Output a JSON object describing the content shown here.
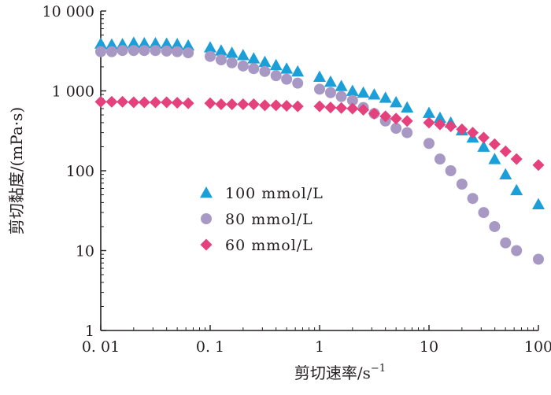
{
  "chart_data": {
    "type": "scatter",
    "xscale": "log",
    "yscale": "log",
    "xlim": [
      0.01,
      100
    ],
    "ylim": [
      1,
      10000
    ],
    "grid": false,
    "legend_position": "center-left",
    "xlabel": "剪切速率/s",
    "xlabel_sup": "−1",
    "ylabel": "剪切黏度/(mPa·s)",
    "x_ticks": [
      0.01,
      0.1,
      1,
      10,
      100
    ],
    "x_tick_labels": [
      "0. 01",
      "0. 1",
      "1",
      "10",
      "100"
    ],
    "y_ticks": [
      1,
      10,
      100,
      1000,
      10000
    ],
    "y_tick_labels": [
      "1",
      "10",
      "100",
      "1 000",
      "10 000"
    ],
    "series": [
      {
        "name": "100 mmol/L",
        "marker": "triangle",
        "color": "#1a9fd8",
        "x": [
          0.01,
          0.0126,
          0.0158,
          0.02,
          0.025,
          0.0316,
          0.04,
          0.05,
          0.063,
          0.1,
          0.126,
          0.158,
          0.2,
          0.25,
          0.316,
          0.4,
          0.5,
          0.631,
          1,
          1.26,
          1.58,
          2,
          2.51,
          3.16,
          4,
          5,
          6.31,
          10,
          12.6,
          15.8,
          20,
          25.1,
          31.6,
          39.8,
          50.1,
          63.1,
          100
        ],
        "y": [
          3900,
          3800,
          3850,
          4000,
          3950,
          3950,
          3900,
          3850,
          3700,
          3500,
          3200,
          3000,
          2800,
          2550,
          2300,
          2100,
          1900,
          1750,
          1500,
          1300,
          1150,
          1000,
          950,
          900,
          820,
          720,
          620,
          530,
          460,
          400,
          320,
          260,
          200,
          140,
          90,
          57,
          38
        ]
      },
      {
        "name": "80 mmol/L",
        "marker": "circle",
        "color": "#a898c4",
        "x": [
          0.01,
          0.0126,
          0.0158,
          0.02,
          0.025,
          0.0316,
          0.04,
          0.05,
          0.063,
          0.1,
          0.126,
          0.158,
          0.2,
          0.25,
          0.316,
          0.4,
          0.5,
          0.631,
          1,
          1.26,
          1.58,
          2,
          2.51,
          3.16,
          4,
          5,
          6.31,
          10,
          12.6,
          15.8,
          20,
          25.1,
          31.6,
          39.8,
          50.1,
          63.1,
          100
        ],
        "y": [
          3100,
          3100,
          3200,
          3200,
          3200,
          3200,
          3150,
          3100,
          3000,
          2700,
          2450,
          2250,
          2050,
          1900,
          1750,
          1550,
          1400,
          1250,
          1050,
          950,
          850,
          760,
          620,
          520,
          420,
          340,
          300,
          220,
          140,
          100,
          68,
          45,
          30,
          20,
          12.5,
          10,
          7.8
        ]
      },
      {
        "name": "60 mmol/L",
        "marker": "diamond",
        "color": "#e5417c",
        "x": [
          0.01,
          0.0126,
          0.0158,
          0.02,
          0.025,
          0.0316,
          0.04,
          0.05,
          0.063,
          0.1,
          0.126,
          0.158,
          0.2,
          0.25,
          0.316,
          0.4,
          0.5,
          0.631,
          1,
          1.26,
          1.58,
          2,
          2.51,
          3.16,
          4,
          5,
          6.31,
          10,
          12.6,
          15.8,
          20,
          25.1,
          31.6,
          39.8,
          50.1,
          63.1,
          100
        ],
        "y": [
          730,
          730,
          730,
          720,
          720,
          720,
          720,
          710,
          700,
          700,
          680,
          680,
          680,
          680,
          660,
          660,
          650,
          640,
          640,
          620,
          610,
          600,
          580,
          520,
          480,
          450,
          420,
          400,
          380,
          360,
          330,
          300,
          260,
          215,
          175,
          140,
          118
        ]
      }
    ]
  }
}
